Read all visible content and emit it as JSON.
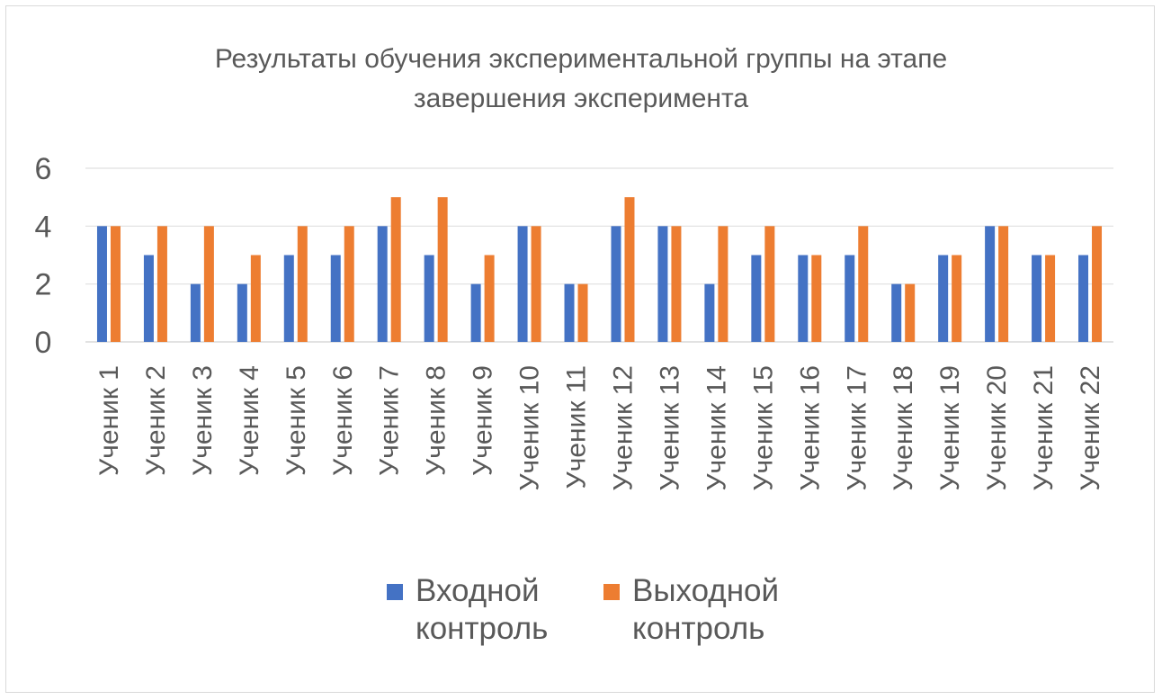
{
  "chart_data": {
    "type": "bar",
    "title": "Результаты обучения экспериментальной группы на этапе завершения эксперимента",
    "title_lines": [
      "Результаты обучения экспериментальной группы на этапе",
      "завершения эксперимента"
    ],
    "categories": [
      "Ученик 1",
      "Ученик 2",
      "Ученик 3",
      "Ученик 4",
      "Ученик 5",
      "Ученик 6",
      "Ученик 7",
      "Ученик 8",
      "Ученик 9",
      "Ученик 10",
      "Ученик 11",
      "Ученик 12",
      "Ученик 13",
      "Ученик 14",
      "Ученик 15",
      "Ученик 16",
      "Ученик 17",
      "Ученик 18",
      "Ученик 19",
      "Ученик 20",
      "Ученик 21",
      "Ученик 22"
    ],
    "series": [
      {
        "name": "Входной контроль",
        "color": "#4472C4",
        "values": [
          4,
          3,
          2,
          2,
          3,
          3,
          4,
          3,
          2,
          4,
          2,
          4,
          4,
          2,
          3,
          3,
          3,
          2,
          3,
          4,
          3,
          3
        ]
      },
      {
        "name": "Выходной контроль",
        "color": "#ED7D31",
        "values": [
          4,
          4,
          4,
          3,
          4,
          4,
          5,
          5,
          3,
          4,
          2,
          5,
          4,
          4,
          4,
          3,
          4,
          2,
          3,
          4,
          3,
          4
        ]
      }
    ],
    "legend": {
      "position": "bottom",
      "items": [
        {
          "name": "Входной контроль",
          "lines": [
            "Входной",
            "контроль"
          ],
          "color": "#4472C4"
        },
        {
          "name": "Выходной контроль",
          "lines": [
            "Выходной",
            "контроль"
          ],
          "color": "#ED7D31"
        }
      ]
    },
    "ylim": [
      0,
      6
    ],
    "yticks": [
      0,
      2,
      4,
      6
    ],
    "grid": true,
    "xlabel": "",
    "ylabel": ""
  }
}
